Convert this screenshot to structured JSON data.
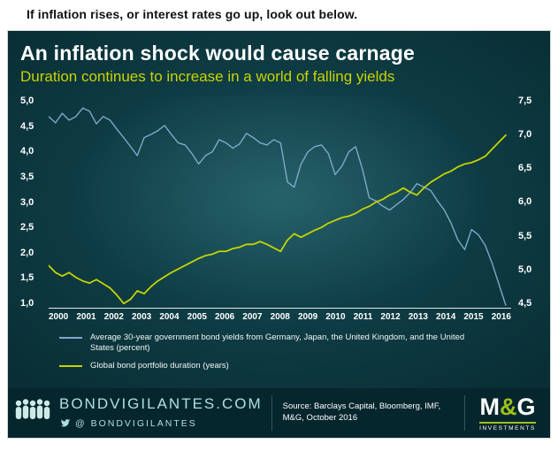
{
  "headline": "If inflation rises, or interest rates go up, look out below.",
  "card": {
    "title": "An inflation shock would cause carnage",
    "subtitle": "Duration continues to increase in a world of falling yields"
  },
  "chart_data": {
    "type": "line",
    "title": "An inflation shock would cause carnage",
    "subtitle": "Duration continues to increase in a world of falling yields",
    "grid": "off",
    "legend_position": "bottom-left",
    "x_range": [
      2000,
      2016.95
    ],
    "x_tick_labels": [
      "2000",
      "2001",
      "2002",
      "2003",
      "2004",
      "2005",
      "2006",
      "2007",
      "2008",
      "2009",
      "2010",
      "2011",
      "2012",
      "2013",
      "2014",
      "2015",
      "2016"
    ],
    "left_axis": {
      "ticks": [
        "5,0",
        "4,5",
        "4,0",
        "3,5",
        "3,0",
        "2,5",
        "2,0",
        "1,5",
        "1,0"
      ],
      "range": [
        1.0,
        5.0
      ]
    },
    "right_axis": {
      "ticks": [
        "7,5",
        "7,0",
        "6,5",
        "6,0",
        "5,5",
        "5,0",
        "4,5"
      ],
      "range": [
        4.5,
        7.5
      ]
    },
    "x": [
      2000,
      2000.25,
      2000.5,
      2000.75,
      2001,
      2001.25,
      2001.5,
      2001.75,
      2002,
      2002.25,
      2002.5,
      2002.75,
      2003,
      2003.25,
      2003.5,
      2003.75,
      2004,
      2004.25,
      2004.5,
      2004.75,
      2005,
      2005.25,
      2005.5,
      2005.75,
      2006,
      2006.25,
      2006.5,
      2006.75,
      2007,
      2007.25,
      2007.5,
      2007.75,
      2008,
      2008.25,
      2008.5,
      2008.75,
      2009,
      2009.25,
      2009.5,
      2009.75,
      2010,
      2010.25,
      2010.5,
      2010.75,
      2011,
      2011.25,
      2011.5,
      2011.75,
      2012,
      2012.25,
      2012.5,
      2012.75,
      2013,
      2013.25,
      2013.5,
      2013.75,
      2014,
      2014.25,
      2014.5,
      2014.75,
      2015,
      2015.25,
      2015.5,
      2015.75,
      2016,
      2016.25,
      2016.5,
      2016.75
    ],
    "series": [
      {
        "name": "Average 30-year government bond yields from Germany, Japan, the United Kingdom, and the United States (percent)",
        "axis": "left",
        "color": "#7fa9c9",
        "stroke_width": 1.4,
        "values": [
          4.62,
          4.5,
          4.68,
          4.55,
          4.62,
          4.78,
          4.72,
          4.48,
          4.62,
          4.55,
          4.38,
          4.22,
          4.05,
          3.88,
          4.22,
          4.28,
          4.35,
          4.45,
          4.28,
          4.12,
          4.08,
          3.92,
          3.72,
          3.88,
          3.95,
          4.18,
          4.12,
          4.02,
          4.1,
          4.3,
          4.22,
          4.12,
          4.08,
          4.18,
          4.12,
          3.38,
          3.28,
          3.72,
          3.95,
          4.05,
          4.08,
          3.92,
          3.52,
          3.68,
          3.95,
          4.05,
          3.62,
          3.08,
          3.02,
          2.92,
          2.85,
          2.95,
          3.05,
          3.18,
          3.35,
          3.28,
          3.22,
          3.02,
          2.85,
          2.6,
          2.28,
          2.1,
          2.48,
          2.38,
          2.18,
          1.85,
          1.45,
          1.05
        ]
      },
      {
        "name": "Global bond portfolio duration (years)",
        "axis": "right",
        "color": "#c6d400",
        "stroke_width": 1.8,
        "values": [
          5.1,
          5.0,
          4.95,
          5.0,
          4.93,
          4.88,
          4.85,
          4.9,
          4.84,
          4.78,
          4.68,
          4.56,
          4.62,
          4.74,
          4.7,
          4.8,
          4.88,
          4.94,
          5.0,
          5.05,
          5.1,
          5.15,
          5.2,
          5.24,
          5.26,
          5.3,
          5.3,
          5.34,
          5.36,
          5.4,
          5.4,
          5.44,
          5.4,
          5.35,
          5.3,
          5.46,
          5.55,
          5.5,
          5.55,
          5.6,
          5.64,
          5.7,
          5.74,
          5.78,
          5.8,
          5.84,
          5.9,
          5.94,
          6.0,
          6.04,
          6.1,
          6.14,
          6.2,
          6.14,
          6.1,
          6.2,
          6.28,
          6.34,
          6.4,
          6.44,
          6.5,
          6.54,
          6.56,
          6.6,
          6.65,
          6.75,
          6.85,
          6.95
        ]
      }
    ]
  },
  "legend": [
    {
      "label": "Average 30-year government bond yields from Germany, Japan, the United Kingdom, and the United States (percent)",
      "color": "#7fa9c9"
    },
    {
      "label": "Global bond portfolio duration (years)",
      "color": "#c6d400"
    }
  ],
  "footer": {
    "site": "BONDVIGILANTES.COM",
    "twitter": "@ BONDVIGILANTES",
    "source": "Source: Barclays Capital, Bloomberg, IMF, M&G, October 2016",
    "logo": {
      "m": "M",
      "amp": "&",
      "g": "G",
      "sub": "INVESTMENTS"
    }
  },
  "colors": {
    "card_background": "#0e3b43",
    "footer_background": "#06262d",
    "accent_lime": "#c8d400",
    "line_blue": "#7fa9c9",
    "line_yellow": "#c6d400",
    "brand_teal_text": "#ade0dd"
  }
}
